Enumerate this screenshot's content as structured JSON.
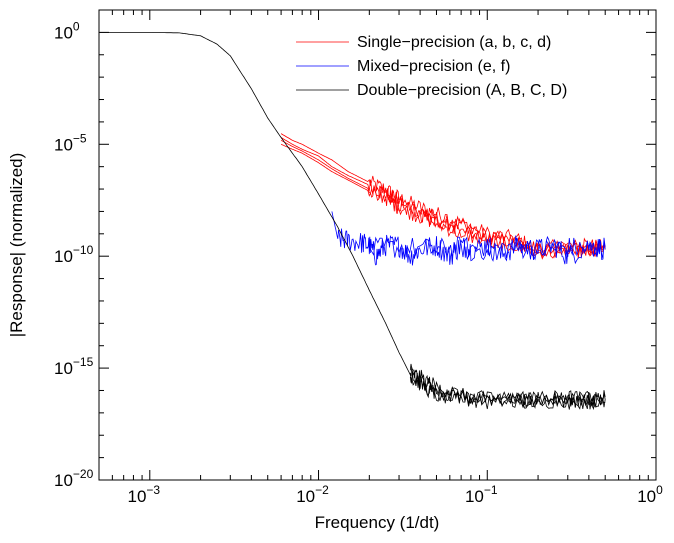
{
  "chart_data": {
    "type": "line",
    "xlabel": "Frequency  (1/dt)",
    "ylabel": "|Response|  (normalized)",
    "xscale": "log",
    "yscale": "log",
    "xlim": [
      0.0005,
      1.0
    ],
    "ylim": [
      1e-20,
      10.0
    ],
    "grid": false,
    "legend_position": "top-right",
    "x_ticks": [
      {
        "base": "10",
        "exp": "−3",
        "value": 0.001
      },
      {
        "base": "10",
        "exp": "−2",
        "value": 0.01
      },
      {
        "base": "10",
        "exp": "−1",
        "value": 0.1
      },
      {
        "base": "10",
        "exp": "0",
        "value": 1.0
      }
    ],
    "y_ticks": [
      {
        "base": "10",
        "exp": "0",
        "value": 1.0
      },
      {
        "base": "10",
        "exp": "−5",
        "value": 1e-05
      },
      {
        "base": "10",
        "exp": "−10",
        "value": 1e-10
      },
      {
        "base": "10",
        "exp": "−15",
        "value": 1e-15
      },
      {
        "base": "10",
        "exp": "−20",
        "value": 1e-20
      }
    ],
    "legend": [
      {
        "label": "Single−precision (a, b, c, d)",
        "color": "#ff0000"
      },
      {
        "label": "Mixed−precision (e, f)",
        "color": "#0000ff"
      },
      {
        "label": "Double−precision (A, B, C, D)",
        "color": "#000000"
      }
    ],
    "series": [
      {
        "group": "Single−precision",
        "member": "a",
        "color": "#ff0000",
        "x": [
          0.006,
          0.007,
          0.008,
          0.01,
          0.012,
          0.015,
          0.02,
          0.025,
          0.03,
          0.04,
          0.05,
          0.07,
          0.1,
          0.15,
          0.2,
          0.3,
          0.4,
          0.5
        ],
        "y": [
          3e-05,
          1.5e-05,
          1e-05,
          4e-06,
          2e-06,
          6e-07,
          2e-07,
          1e-07,
          4e-08,
          1.5e-08,
          8e-09,
          3e-09,
          1e-09,
          6e-10,
          2e-10,
          3e-10,
          2e-10,
          3e-10
        ]
      },
      {
        "group": "Single−precision",
        "member": "b",
        "color": "#ff0000",
        "x": [
          0.006,
          0.007,
          0.008,
          0.01,
          0.012,
          0.015,
          0.02,
          0.025,
          0.03,
          0.04,
          0.05,
          0.07,
          0.1,
          0.15,
          0.2,
          0.3,
          0.4,
          0.5
        ],
        "y": [
          2e-05,
          1e-05,
          6e-06,
          3e-06,
          1e-06,
          4e-07,
          1.5e-07,
          6e-08,
          3e-08,
          1e-08,
          5e-09,
          2e-09,
          8e-10,
          4e-10,
          1.5e-10,
          2e-10,
          3e-10,
          2e-10
        ]
      },
      {
        "group": "Single−precision",
        "member": "c",
        "color": "#ff0000",
        "x": [
          0.006,
          0.007,
          0.008,
          0.01,
          0.012,
          0.015,
          0.02,
          0.025,
          0.03,
          0.04,
          0.05,
          0.07,
          0.1,
          0.15,
          0.2,
          0.3,
          0.4,
          0.5
        ],
        "y": [
          1.5e-05,
          8e-06,
          5e-06,
          2e-06,
          8e-07,
          3e-07,
          1e-07,
          5e-08,
          2e-08,
          8e-09,
          4e-09,
          1.5e-09,
          6e-10,
          3e-10,
          2e-10,
          1.5e-10,
          2e-10,
          3e-10
        ]
      },
      {
        "group": "Single−precision",
        "member": "d",
        "color": "#ff0000",
        "x": [
          0.006,
          0.007,
          0.008,
          0.01,
          0.012,
          0.015,
          0.02,
          0.025,
          0.03,
          0.04,
          0.05,
          0.07,
          0.1,
          0.15,
          0.2,
          0.3,
          0.4,
          0.5
        ],
        "y": [
          1e-05,
          6e-06,
          4e-06,
          1.5e-06,
          6e-07,
          2.5e-07,
          8e-08,
          4e-08,
          1.5e-08,
          6e-09,
          3e-09,
          1e-09,
          5e-10,
          3e-10,
          2e-10,
          2e-10,
          1.5e-10,
          2e-10
        ]
      },
      {
        "group": "Mixed−precision",
        "member": "e",
        "color": "#0000ff",
        "x": [
          0.012,
          0.013,
          0.015,
          0.018,
          0.02,
          0.022,
          0.025,
          0.03,
          0.035,
          0.04,
          0.05,
          0.06,
          0.07,
          0.08,
          0.1,
          0.12,
          0.15,
          0.2,
          0.25,
          0.3,
          0.4,
          0.5
        ],
        "y": [
          1e-08,
          6e-10,
          5e-10,
          4e-10,
          3e-10,
          1e-10,
          3e-10,
          3e-10,
          1e-10,
          2e-10,
          3e-10,
          1e-10,
          3e-10,
          2e-10,
          3e-10,
          1e-10,
          3e-10,
          2e-10,
          3e-10,
          1e-10,
          3e-10,
          2e-10
        ]
      },
      {
        "group": "Mixed−precision",
        "member": "f",
        "color": "#0000ff",
        "x": [
          0.02,
          0.03,
          0.05,
          0.07,
          0.1,
          0.15,
          0.2,
          0.3,
          0.4,
          0.5
        ],
        "y": [
          2e-10,
          2.5e-10,
          2e-10,
          2.5e-10,
          2e-10,
          2.5e-10,
          2e-10,
          2.5e-10,
          2e-10,
          2.5e-10
        ]
      },
      {
        "group": "Double−precision",
        "member": "A",
        "color": "#000000",
        "x": [
          0.0005,
          0.001,
          0.0015,
          0.002,
          0.0025,
          0.003,
          0.004,
          0.005,
          0.006,
          0.008,
          0.01,
          0.013,
          0.016,
          0.02,
          0.025,
          0.03,
          0.035,
          0.04,
          0.05,
          0.07,
          0.1,
          0.15,
          0.2,
          0.3,
          0.4,
          0.5
        ],
        "y": [
          1.0,
          1.0,
          0.95,
          0.7,
          0.3,
          0.09,
          0.003,
          0.00015,
          2e-05,
          1e-06,
          6e-08,
          2e-09,
          1e-10,
          3e-12,
          1e-13,
          5e-15,
          5e-16,
          2e-16,
          8e-17,
          6e-17,
          4e-17,
          5e-17,
          4e-17,
          5e-17,
          4e-17,
          5e-17
        ]
      },
      {
        "group": "Double−precision",
        "member": "B",
        "color": "#000000",
        "x": [
          0.035,
          0.04,
          0.05,
          0.07,
          0.1,
          0.15,
          0.2,
          0.3,
          0.4,
          0.5
        ],
        "y": [
          8e-16,
          3e-16,
          1e-16,
          5e-17,
          3e-17,
          4e-17,
          3e-17,
          4e-17,
          3e-17,
          4e-17
        ]
      },
      {
        "group": "Double−precision",
        "member": "C",
        "color": "#000000",
        "x": [
          0.035,
          0.04,
          0.05,
          0.07,
          0.1,
          0.15,
          0.2,
          0.3,
          0.4,
          0.5
        ],
        "y": [
          4e-16,
          2e-16,
          6e-17,
          4e-17,
          5e-17,
          3e-17,
          5e-17,
          3e-17,
          5e-17,
          3e-17
        ]
      },
      {
        "group": "Double−precision",
        "member": "D",
        "color": "#000000",
        "x": [
          0.035,
          0.04,
          0.05,
          0.07,
          0.1,
          0.15,
          0.2,
          0.3,
          0.4,
          0.5
        ],
        "y": [
          6e-16,
          4e-16,
          1.5e-16,
          6e-17,
          4e-17,
          4e-17,
          3e-17,
          4e-17,
          3e-17,
          4e-17
        ]
      }
    ]
  }
}
